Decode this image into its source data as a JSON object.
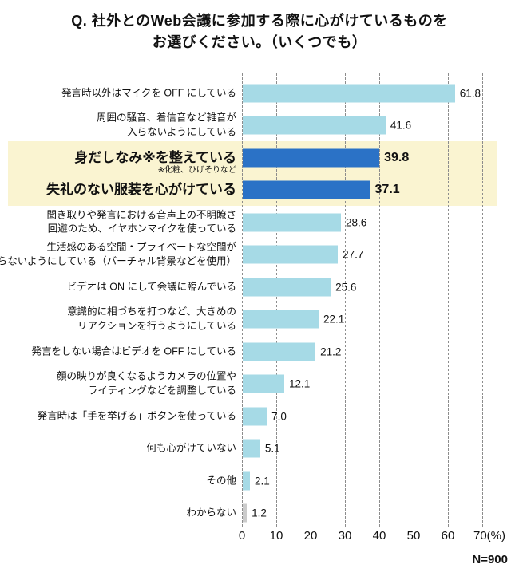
{
  "title": {
    "line1": "Q. 社外とのWeb会議に参加する際に心がけているものを",
    "line2": "お選びください。（いくつでも）"
  },
  "chart_data": {
    "type": "bar",
    "orientation": "horizontal",
    "title": "Q. 社外とのWeb会議に参加する際に心がけているものを お選びください。（いくつでも）",
    "n_label": "N=900",
    "x_axis": {
      "min": 0,
      "max": 70,
      "ticks": [
        0,
        10,
        20,
        30,
        40,
        50,
        60,
        70
      ],
      "unit_suffix": "(%)",
      "grid": "dashed-vertical"
    },
    "highlight": {
      "rows": [
        2,
        3
      ],
      "bg": "#FAF4D1"
    },
    "categories": [
      {
        "label_lines": [
          "発言時以外はマイクを OFF にしている"
        ],
        "value": 61.8,
        "value_label": "61.8",
        "emphasis": false,
        "gray": false
      },
      {
        "label_lines": [
          "周囲の騒音、着信音など雑音が",
          "入らないようにしている"
        ],
        "value": 41.6,
        "value_label": "41.6",
        "emphasis": false,
        "gray": false
      },
      {
        "label_lines": [
          "身だしなみ※を整えている"
        ],
        "note": "※化粧、ひげそりなど",
        "value": 39.8,
        "value_label": "39.8",
        "emphasis": true,
        "gray": false
      },
      {
        "label_lines": [
          "失礼のない服装を心がけている"
        ],
        "value": 37.1,
        "value_label": "37.1",
        "emphasis": true,
        "gray": false
      },
      {
        "label_lines": [
          "聞き取りや発言における音声上の不明瞭さ",
          "回避のため、イヤホンマイクを使っている"
        ],
        "value": 28.6,
        "value_label": "28.6",
        "emphasis": false,
        "gray": false
      },
      {
        "label_lines": [
          "生活感のある空間・プライベートな空間が",
          "映らないようにしている（バーチャル背景などを使用）"
        ],
        "value": 27.7,
        "value_label": "27.7",
        "emphasis": false,
        "gray": false
      },
      {
        "label_lines": [
          "ビデオは ON にして会議に臨んでいる"
        ],
        "value": 25.6,
        "value_label": "25.6",
        "emphasis": false,
        "gray": false
      },
      {
        "label_lines": [
          "意識的に相づちを打つなど、大きめの",
          "リアクションを行うようにしている"
        ],
        "value": 22.1,
        "value_label": "22.1",
        "emphasis": false,
        "gray": false
      },
      {
        "label_lines": [
          "発言をしない場合はビデオを OFF にしている"
        ],
        "value": 21.2,
        "value_label": "21.2",
        "emphasis": false,
        "gray": false
      },
      {
        "label_lines": [
          "顔の映りが良くなるようカメラの位置や",
          "ライティングなどを調整している"
        ],
        "value": 12.1,
        "value_label": "12.1",
        "emphasis": false,
        "gray": false
      },
      {
        "label_lines": [
          "発言時は「手を挙げる」ボタンを使っている"
        ],
        "value": 7.0,
        "value_label": "7.0",
        "emphasis": false,
        "gray": false
      },
      {
        "label_lines": [
          "何も心がけていない"
        ],
        "value": 5.1,
        "value_label": "5.1",
        "emphasis": false,
        "gray": false
      },
      {
        "label_lines": [
          "その他"
        ],
        "value": 2.1,
        "value_label": "2.1",
        "emphasis": false,
        "gray": false
      },
      {
        "label_lines": [
          "わからない"
        ],
        "value": 1.2,
        "value_label": "1.2",
        "emphasis": false,
        "gray": true
      }
    ],
    "colors": {
      "bar_light": "#A6DAE6",
      "bar_dark": "#2B72C6",
      "bar_gray": "#CBCBCB",
      "highlight_bg": "#FAF4D1",
      "grid": "#8C8C8C",
      "text": "#111111"
    }
  }
}
